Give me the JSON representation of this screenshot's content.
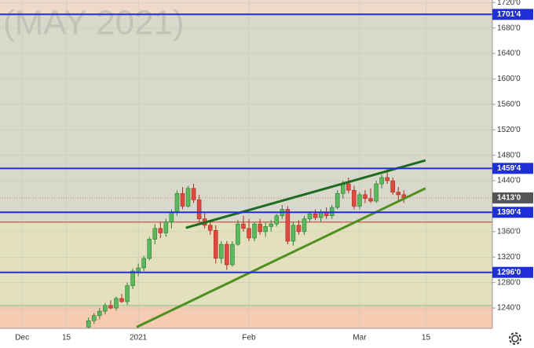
{
  "chart_data": {
    "type": "candlestick",
    "watermark": "(MAY 2021)",
    "xlim": [
      -4,
      85
    ],
    "xticks": [
      {
        "value": 0,
        "label": "Dec"
      },
      {
        "value": 8,
        "label": "15"
      },
      {
        "value": 21,
        "label": "2021"
      },
      {
        "value": 41,
        "label": "Feb"
      },
      {
        "value": 61,
        "label": "Mar"
      },
      {
        "value": 73,
        "label": "15"
      }
    ],
    "ylim": [
      1208,
      1724
    ],
    "yticks": [
      {
        "value": 1720,
        "label": "1720'0"
      },
      {
        "value": 1680,
        "label": "1680'0"
      },
      {
        "value": 1640,
        "label": "1640'0"
      },
      {
        "value": 1600,
        "label": "1600'0"
      },
      {
        "value": 1560,
        "label": "1560'0"
      },
      {
        "value": 1520,
        "label": "1520'0"
      },
      {
        "value": 1480,
        "label": "1480'0"
      },
      {
        "value": 1440,
        "label": "1440'0"
      },
      {
        "value": 1360,
        "label": "1360'0"
      },
      {
        "value": 1320,
        "label": "1320'0"
      },
      {
        "value": 1280,
        "label": "1280'0"
      },
      {
        "value": 1240,
        "label": "1240'0"
      }
    ],
    "up_color": "#5cb85c",
    "down_color": "#e04a3f",
    "zones": [
      {
        "from": 1701.4,
        "to": 1724,
        "color": "#efd9c8"
      },
      {
        "from": 1375,
        "to": 1701.4,
        "color": "#d9d9cb"
      },
      {
        "from": 1244,
        "to": 1375,
        "color": "#e2e0bd"
      },
      {
        "from": 1208,
        "to": 1244,
        "color": "#f5cbb2"
      }
    ],
    "levels": [
      {
        "value": 1701.4,
        "label": "1701'4",
        "color": "#1f2fd6"
      },
      {
        "value": 1459.4,
        "label": "1459'4",
        "color": "#1f2fd6"
      },
      {
        "value": 1390.4,
        "label": "1390'4",
        "color": "#1f2fd6"
      },
      {
        "value": 1296,
        "label": "1296'0",
        "color": "#1f2fd6"
      }
    ],
    "thin_lines": [
      {
        "value": 1375,
        "color": "#c0392b"
      },
      {
        "value": 1244,
        "color": "#7fc98a"
      }
    ],
    "last_price": {
      "value": 1413,
      "label": "1413'0",
      "color": "#555555"
    },
    "trendlines": [
      {
        "x": [
          29.6,
          72.9
        ],
        "y": [
          1366,
          1472
        ],
        "color": "#1f6b1f"
      },
      {
        "x": [
          20.7,
          72.9
        ],
        "y": [
          1210,
          1428
        ],
        "color": "#4f8f1f"
      }
    ],
    "x": [
      12,
      13,
      14,
      15,
      16,
      17,
      18,
      19,
      20,
      21,
      22,
      23,
      24,
      25,
      26,
      27,
      28,
      29,
      30,
      31,
      32,
      33,
      34,
      35,
      36,
      37,
      38,
      39,
      40,
      41,
      42,
      43,
      44,
      45,
      46,
      47,
      48,
      49,
      50,
      51,
      52,
      53,
      54,
      55,
      56,
      57,
      58,
      59,
      60,
      61,
      62,
      63,
      64,
      65,
      66,
      67,
      68,
      69
    ],
    "ohlc": [
      [
        1210,
        1225,
        1205,
        1220
      ],
      [
        1220,
        1232,
        1215,
        1228
      ],
      [
        1228,
        1240,
        1222,
        1235
      ],
      [
        1235,
        1248,
        1230,
        1244
      ],
      [
        1244,
        1252,
        1238,
        1240
      ],
      [
        1240,
        1258,
        1236,
        1255
      ],
      [
        1255,
        1262,
        1248,
        1250
      ],
      [
        1250,
        1280,
        1245,
        1275
      ],
      [
        1275,
        1302,
        1270,
        1298
      ],
      [
        1298,
        1310,
        1290,
        1303
      ],
      [
        1303,
        1322,
        1298,
        1318
      ],
      [
        1318,
        1352,
        1315,
        1348
      ],
      [
        1348,
        1372,
        1340,
        1365
      ],
      [
        1365,
        1375,
        1350,
        1358
      ],
      [
        1358,
        1380,
        1352,
        1375
      ],
      [
        1375,
        1395,
        1365,
        1390
      ],
      [
        1390,
        1425,
        1385,
        1420
      ],
      [
        1420,
        1430,
        1395,
        1400
      ],
      [
        1400,
        1432,
        1398,
        1428
      ],
      [
        1428,
        1435,
        1405,
        1410
      ],
      [
        1410,
        1418,
        1375,
        1380
      ],
      [
        1380,
        1390,
        1365,
        1370
      ],
      [
        1370,
        1378,
        1355,
        1362
      ],
      [
        1362,
        1370,
        1310,
        1318
      ],
      [
        1318,
        1345,
        1310,
        1340
      ],
      [
        1340,
        1345,
        1300,
        1308
      ],
      [
        1308,
        1345,
        1305,
        1340
      ],
      [
        1340,
        1378,
        1338,
        1372
      ],
      [
        1372,
        1385,
        1360,
        1365
      ],
      [
        1365,
        1380,
        1345,
        1350
      ],
      [
        1350,
        1375,
        1345,
        1372
      ],
      [
        1372,
        1380,
        1355,
        1360
      ],
      [
        1360,
        1375,
        1352,
        1368
      ],
      [
        1368,
        1378,
        1360,
        1372
      ],
      [
        1372,
        1388,
        1368,
        1385
      ],
      [
        1385,
        1402,
        1380,
        1395
      ],
      [
        1395,
        1400,
        1340,
        1345
      ],
      [
        1345,
        1375,
        1338,
        1370
      ],
      [
        1370,
        1378,
        1355,
        1360
      ],
      [
        1360,
        1385,
        1355,
        1380
      ],
      [
        1380,
        1392,
        1375,
        1388
      ],
      [
        1388,
        1395,
        1378,
        1382
      ],
      [
        1382,
        1395,
        1375,
        1390
      ],
      [
        1390,
        1398,
        1380,
        1385
      ],
      [
        1385,
        1402,
        1380,
        1398
      ],
      [
        1398,
        1425,
        1395,
        1420
      ],
      [
        1420,
        1440,
        1412,
        1435
      ],
      [
        1435,
        1445,
        1420,
        1425
      ],
      [
        1425,
        1432,
        1395,
        1400
      ],
      [
        1400,
        1422,
        1395,
        1418
      ],
      [
        1418,
        1425,
        1405,
        1412
      ],
      [
        1412,
        1428,
        1405,
        1408
      ],
      [
        1408,
        1440,
        1405,
        1435
      ],
      [
        1435,
        1450,
        1428,
        1445
      ],
      [
        1445,
        1458,
        1435,
        1440
      ],
      [
        1440,
        1445,
        1418,
        1422
      ],
      [
        1422,
        1430,
        1408,
        1418
      ],
      [
        1418,
        1425,
        1405,
        1413
      ]
    ]
  }
}
